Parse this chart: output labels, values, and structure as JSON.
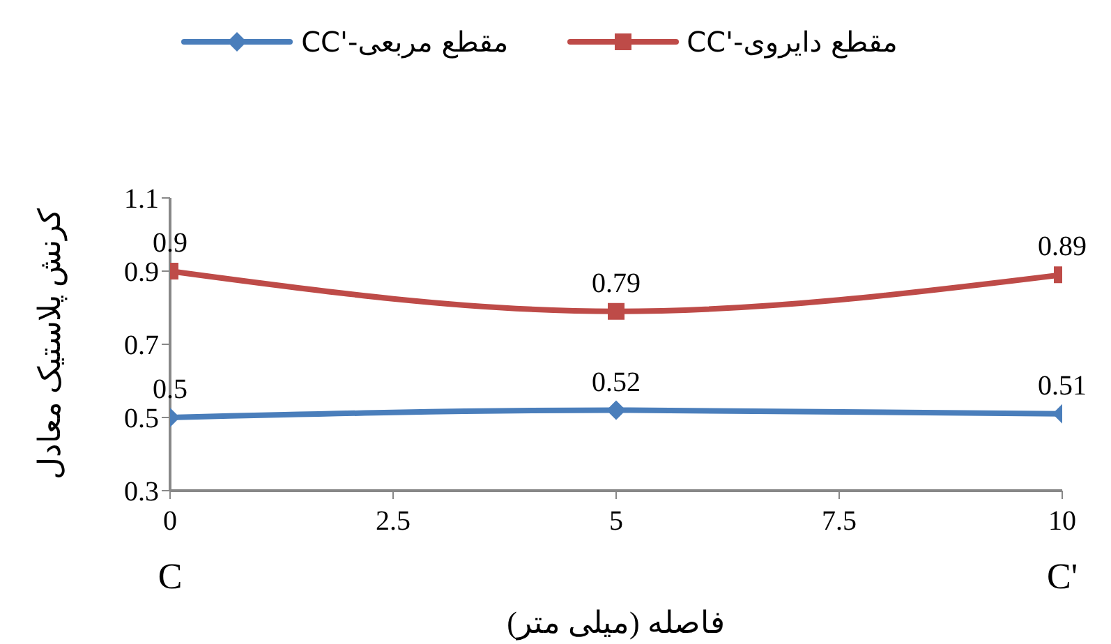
{
  "chart_data": {
    "type": "line",
    "xlabel": "فاصله (میلی متر)",
    "ylabel": "کرنش پلاستیک معادل",
    "x": [
      0,
      5,
      10
    ],
    "series": [
      {
        "name": "CC'-مقطع مربعی",
        "color": "#4a7ebb",
        "marker": "diamond",
        "values": [
          0.5,
          0.52,
          0.51
        ]
      },
      {
        "name": "CC'-مقطع دایروی",
        "color": "#be4b48",
        "marker": "square",
        "values": [
          0.9,
          0.79,
          0.89
        ]
      }
    ],
    "xlim": [
      0,
      10
    ],
    "xticks": [
      0,
      2.5,
      5,
      7.5,
      10
    ],
    "ylim": [
      0.3,
      1.1
    ],
    "yticks": [
      0.3,
      0.5,
      0.7,
      0.9,
      1.1
    ],
    "annotations": [
      "C",
      "C'"
    ],
    "data_labels": true,
    "legend": "top",
    "grid": false
  }
}
